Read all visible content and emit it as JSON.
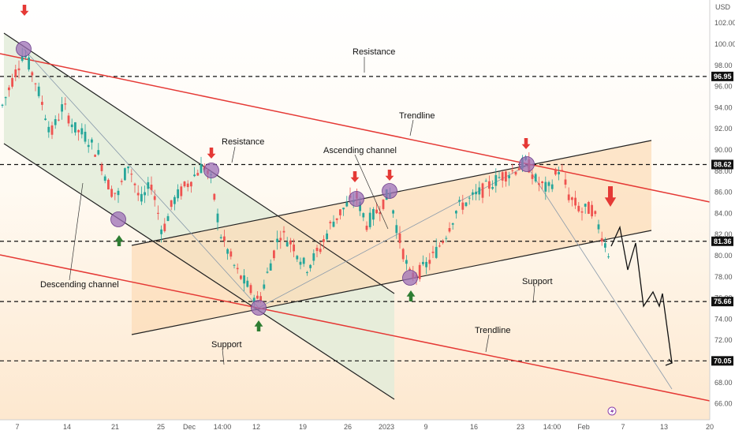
{
  "chart_data": {
    "type": "candlestick",
    "currency": "USD",
    "y_range": [
      65.5,
      103
    ],
    "y_ticks": [
      "102.00",
      "100.00",
      "98.00",
      "96.00",
      "94.00",
      "92.00",
      "90.00",
      "88.00",
      "86.00",
      "84.00",
      "82.00",
      "80.00",
      "78.00",
      "76.00",
      "74.00",
      "72.00",
      "70.00",
      "68.00",
      "66.00"
    ],
    "x_ticks": [
      "7",
      "14",
      "21",
      "25",
      "Dec",
      "14:00",
      "12",
      "19",
      "26",
      "2023",
      "9",
      "16",
      "23",
      "14:00",
      "Feb",
      "7",
      "13",
      "20"
    ],
    "price_labels": [
      {
        "text": "96.95",
        "value": 96.95,
        "dark": true
      },
      {
        "text": "88.62",
        "value": 88.62,
        "dark": true
      },
      {
        "text": "81.36",
        "value": 81.36,
        "dark": true
      },
      {
        "text": "75.66",
        "value": 75.66,
        "dark": true
      },
      {
        "text": "70.05",
        "value": 70.05,
        "dark": true
      }
    ],
    "horizontal_levels": [
      96.95,
      88.62,
      81.36,
      75.66,
      70.05
    ],
    "annotations": [
      {
        "text": "Resistance"
      },
      {
        "text": "Resistance"
      },
      {
        "text": "Trendline"
      },
      {
        "text": "Ascending channel"
      },
      {
        "text": "Descending channel"
      },
      {
        "text": "Support"
      },
      {
        "text": "Support"
      },
      {
        "text": "Trendline"
      }
    ],
    "colors": {
      "up": "#26a69a",
      "down": "#ef5350",
      "trendline": "#e53935",
      "pivot": "#9c6fb6",
      "arrow_down": "#e53935",
      "arrow_up": "#2e7d32",
      "desc_channel_fill": "#e6efe0",
      "asc_channel_fill": "#fde3c4"
    }
  }
}
